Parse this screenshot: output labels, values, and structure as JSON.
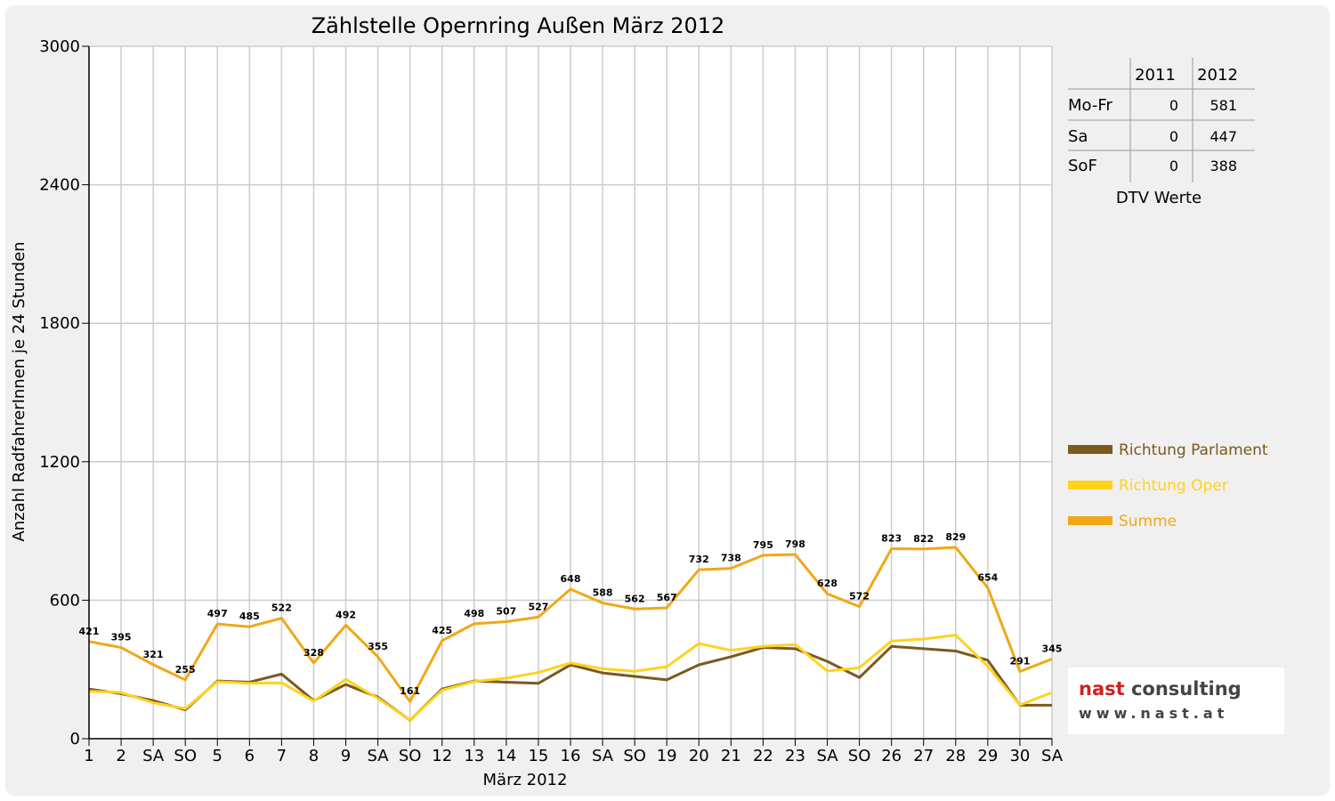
{
  "colors": {
    "parlament": "#7a5a1e",
    "oper": "#ffd21e",
    "summe": "#f0a818",
    "sunday": "#ff0000",
    "grid": "#cccccc"
  },
  "legend": [
    "Richtung Parlament",
    "Richtung Oper",
    "Summe"
  ],
  "dtv_table": {
    "headers": [
      "",
      "2011",
      "2012"
    ],
    "rows": [
      [
        "Mo-Fr",
        "0",
        "581"
      ],
      [
        "Sa",
        "0",
        "447"
      ],
      [
        "SoF",
        "0",
        "388"
      ]
    ],
    "caption": "DTV Werte"
  },
  "logo": {
    "name_part1": "nast",
    "name_part2": " consulting",
    "url": "www.nast.at"
  },
  "chart_data": {
    "type": "line",
    "title": "Zählstelle Opernring Außen März 2012",
    "xlabel": "März 2012",
    "ylabel": "Anzahl RadfahrerInnen je 24 Stunden",
    "ylim": [
      0,
      3000
    ],
    "yticks": [
      0,
      600,
      1200,
      1800,
      2400,
      3000
    ],
    "grid": true,
    "legend_position": "right",
    "categories": [
      "1",
      "2",
      "SA",
      "SO",
      "5",
      "6",
      "7",
      "8",
      "9",
      "SA",
      "SO",
      "12",
      "13",
      "14",
      "15",
      "16",
      "SA",
      "SO",
      "19",
      "20",
      "21",
      "22",
      "23",
      "SA",
      "SO",
      "26",
      "27",
      "28",
      "29",
      "30",
      "SA"
    ],
    "sunday_categories": [
      "SO"
    ],
    "series": [
      {
        "name": "Richtung Parlament",
        "values": [
          215,
          195,
          165,
          125,
          250,
          245,
          280,
          165,
          235,
          180,
          80,
          215,
          250,
          245,
          240,
          320,
          285,
          270,
          255,
          320,
          355,
          395,
          390,
          335,
          265,
          400,
          390,
          380,
          340,
          145,
          145
        ]
      },
      {
        "name": "Richtung Oper",
        "values": [
          206,
          200,
          156,
          130,
          247,
          240,
          242,
          163,
          257,
          175,
          81,
          210,
          248,
          262,
          287,
          328,
          303,
          292,
          312,
          412,
          383,
          400,
          408,
          293,
          307,
          423,
          432,
          449,
          314,
          146,
          200
        ]
      },
      {
        "name": "Summe",
        "values": [
          421,
          395,
          321,
          255,
          497,
          485,
          522,
          328,
          492,
          355,
          161,
          425,
          498,
          507,
          527,
          648,
          588,
          562,
          567,
          732,
          738,
          795,
          798,
          628,
          572,
          823,
          822,
          829,
          654,
          291,
          345
        ]
      }
    ]
  }
}
